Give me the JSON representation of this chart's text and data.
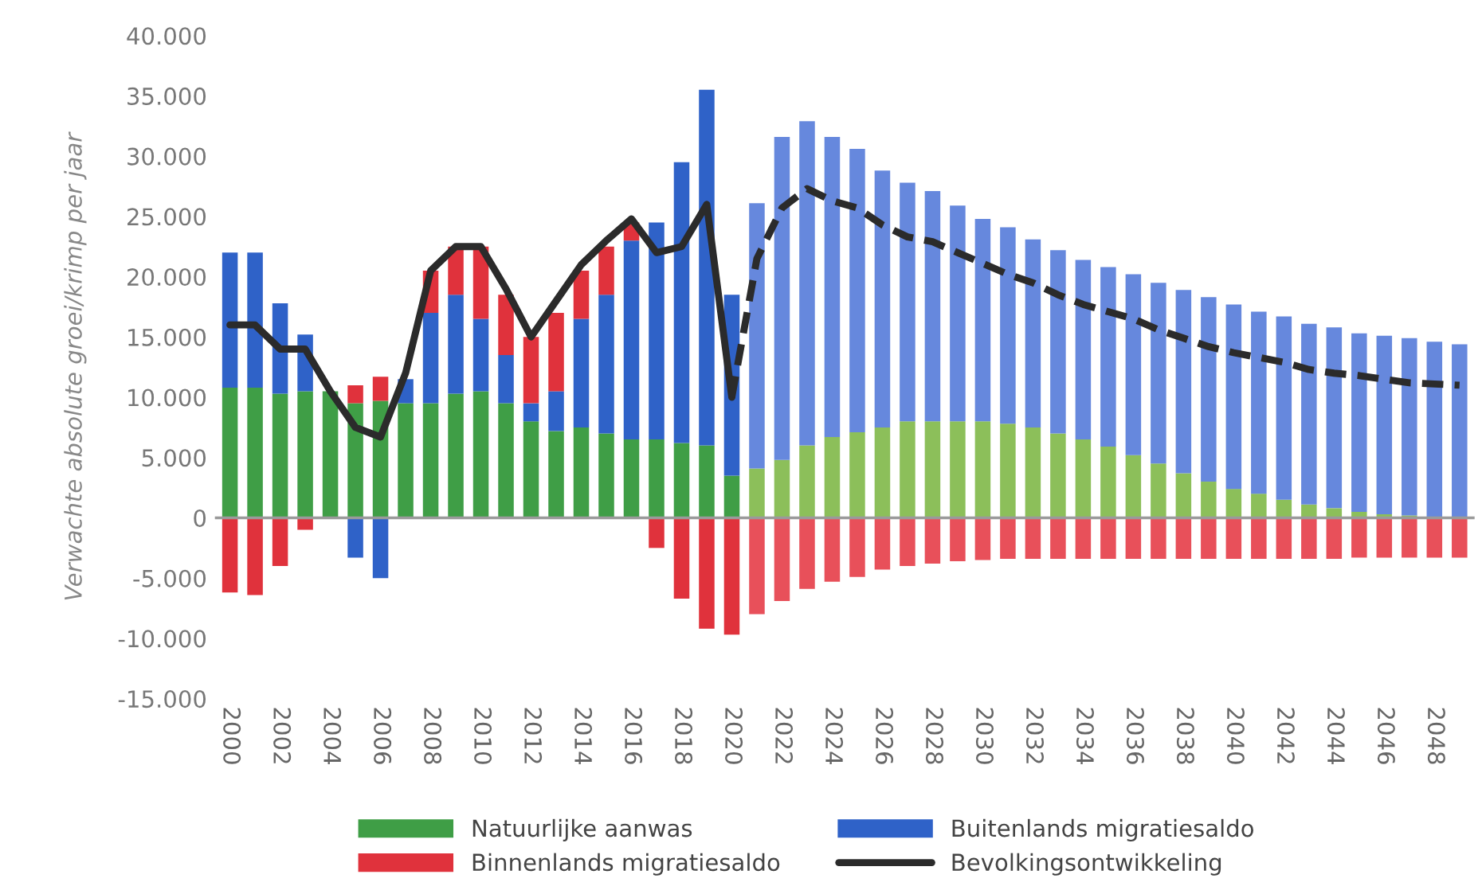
{
  "chart_data": {
    "type": "bar",
    "stacked": true,
    "ylabel": "Verwachte absolute groei/krimp per jaar",
    "x": [
      2000,
      2001,
      2002,
      2003,
      2004,
      2005,
      2006,
      2007,
      2008,
      2009,
      2010,
      2011,
      2012,
      2013,
      2014,
      2015,
      2016,
      2017,
      2018,
      2019,
      2020,
      2021,
      2022,
      2023,
      2024,
      2025,
      2026,
      2027,
      2028,
      2029,
      2030,
      2031,
      2032,
      2033,
      2034,
      2035,
      2036,
      2037,
      2038,
      2039,
      2040,
      2041,
      2042,
      2043,
      2044,
      2045,
      2046,
      2047,
      2048,
      2049
    ],
    "xlim": [
      1999.4,
      2049.6
    ],
    "xticks": [
      2000,
      2002,
      2004,
      2006,
      2008,
      2010,
      2012,
      2014,
      2016,
      2018,
      2020,
      2022,
      2024,
      2026,
      2028,
      2030,
      2032,
      2034,
      2036,
      2038,
      2040,
      2042,
      2044,
      2046,
      2048
    ],
    "ylim": [
      -15000,
      40000
    ],
    "yticks": [
      {
        "value": -15000,
        "label": "-15.000"
      },
      {
        "value": -10000,
        "label": "-10.000"
      },
      {
        "value": -5000,
        "label": "-5.000"
      },
      0,
      {
        "value": 5000,
        "label": "5.000"
      },
      {
        "value": 10000,
        "label": "10.000"
      },
      {
        "value": 15000,
        "label": "15.000"
      },
      {
        "value": 20000,
        "label": "20.000"
      },
      {
        "value": 25000,
        "label": "25.000"
      },
      {
        "value": 30000,
        "label": "30.000"
      },
      {
        "value": 35000,
        "label": "35.000"
      },
      {
        "value": 40000,
        "label": "40.000"
      }
    ],
    "grid": false,
    "legend": "bottom",
    "ref_lines": [
      {
        "axis": "y",
        "value": 0,
        "color": "#9a9a9a"
      }
    ],
    "series": [
      {
        "name": "Natuurlijke aanwas",
        "color": "#3f9e46",
        "colors": [
          "#3f9e46",
          "#3f9e46",
          "#3f9e46",
          "#3f9e46",
          "#3f9e46",
          "#3f9e46",
          "#3f9e46",
          "#3f9e46",
          "#3f9e46",
          "#3f9e46",
          "#3f9e46",
          "#3f9e46",
          "#3f9e46",
          "#3f9e46",
          "#3f9e46",
          "#3f9e46",
          "#3f9e46",
          "#3f9e46",
          "#3f9e46",
          "#3f9e46",
          "#3f9e46",
          "#8cbf5a",
          "#8cbf5a",
          "#8cbf5a",
          "#8cbf5a",
          "#8cbf5a",
          "#8cbf5a",
          "#8cbf5a",
          "#8cbf5a",
          "#8cbf5a",
          "#8cbf5a",
          "#8cbf5a",
          "#8cbf5a",
          "#8cbf5a",
          "#8cbf5a",
          "#8cbf5a",
          "#8cbf5a",
          "#8cbf5a",
          "#8cbf5a",
          "#8cbf5a",
          "#8cbf5a",
          "#8cbf5a",
          "#8cbf5a",
          "#8cbf5a",
          "#8cbf5a",
          "#8cbf5a",
          "#8cbf5a",
          "#8cbf5a",
          "#8cbf5a",
          "#8cbf5a"
        ],
        "values": [
          10800,
          10800,
          10300,
          10500,
          10500,
          9500,
          9700,
          9500,
          9500,
          10300,
          10500,
          9500,
          8000,
          7200,
          7500,
          7000,
          6500,
          6500,
          6200,
          6000,
          3500,
          4100,
          4800,
          6000,
          6700,
          7100,
          7500,
          8000,
          8000,
          8000,
          8000,
          7800,
          7500,
          7000,
          6500,
          5900,
          5200,
          4500,
          3700,
          3000,
          2400,
          2000,
          1500,
          1100,
          800,
          500,
          300,
          200,
          100,
          0
        ]
      },
      {
        "name": "Buitenlands migratiesaldo",
        "color": "#2f62c8",
        "colors": [
          "#2f62c8",
          "#2f62c8",
          "#2f62c8",
          "#2f62c8",
          "#2f62c8",
          "#2f62c8",
          "#2f62c8",
          "#2f62c8",
          "#2f62c8",
          "#2f62c8",
          "#2f62c8",
          "#2f62c8",
          "#2f62c8",
          "#2f62c8",
          "#2f62c8",
          "#2f62c8",
          "#2f62c8",
          "#2f62c8",
          "#2f62c8",
          "#2f62c8",
          "#2f62c8",
          "#6688dd",
          "#6688dd",
          "#6688dd",
          "#6688dd",
          "#6688dd",
          "#6688dd",
          "#6688dd",
          "#6688dd",
          "#6688dd",
          "#6688dd",
          "#6688dd",
          "#6688dd",
          "#6688dd",
          "#6688dd",
          "#6688dd",
          "#6688dd",
          "#6688dd",
          "#6688dd",
          "#6688dd",
          "#6688dd",
          "#6688dd",
          "#6688dd",
          "#6688dd",
          "#6688dd",
          "#6688dd",
          "#6688dd",
          "#6688dd",
          "#6688dd",
          "#6688dd"
        ],
        "values": [
          11200,
          11200,
          7500,
          4700,
          0,
          -3300,
          -5000,
          2000,
          7500,
          8200,
          6000,
          4000,
          1500,
          3300,
          9000,
          11500,
          16500,
          18000,
          23300,
          29500,
          15000,
          22000,
          26800,
          26900,
          24900,
          23500,
          21300,
          19800,
          19100,
          17900,
          16800,
          16300,
          15600,
          15200,
          14900,
          14900,
          15000,
          15000,
          15200,
          15300,
          15300,
          15100,
          15200,
          15000,
          15000,
          14800,
          14800,
          14700,
          14500,
          14400
        ]
      },
      {
        "name": "Binnenlands migratiesaldo",
        "color": "#e0323c",
        "colors": [
          "#e0323c",
          "#e0323c",
          "#e0323c",
          "#e0323c",
          "#e0323c",
          "#e0323c",
          "#e0323c",
          "#e0323c",
          "#e0323c",
          "#e0323c",
          "#e0323c",
          "#e0323c",
          "#e0323c",
          "#e0323c",
          "#e0323c",
          "#e0323c",
          "#e0323c",
          "#e0323c",
          "#e0323c",
          "#e0323c",
          "#e0323c",
          "#e8505a",
          "#e8505a",
          "#e8505a",
          "#e8505a",
          "#e8505a",
          "#e8505a",
          "#e8505a",
          "#e8505a",
          "#e8505a",
          "#e8505a",
          "#e8505a",
          "#e8505a",
          "#e8505a",
          "#e8505a",
          "#e8505a",
          "#e8505a",
          "#e8505a",
          "#e8505a",
          "#e8505a",
          "#e8505a",
          "#e8505a",
          "#e8505a",
          "#e8505a",
          "#e8505a",
          "#e8505a",
          "#e8505a",
          "#e8505a",
          "#e8505a",
          "#e8505a"
        ],
        "values": [
          -6200,
          -6400,
          -4000,
          -1000,
          0,
          1500,
          2000,
          null,
          3500,
          4000,
          6000,
          5000,
          5500,
          6500,
          4000,
          4000,
          1500,
          -2500,
          -6700,
          -9200,
          -9700,
          -8000,
          -6900,
          -5900,
          -5300,
          -4900,
          -4300,
          -4000,
          -3800,
          -3600,
          -3500,
          -3400,
          -3400,
          -3400,
          -3400,
          -3400,
          -3400,
          -3400,
          -3400,
          -3400,
          -3400,
          -3400,
          -3400,
          -3400,
          -3400,
          -3300,
          -3300,
          -3300,
          -3300,
          -3300
        ]
      },
      {
        "name": "Bevolkingsontwikkeling",
        "type": "line",
        "color": "#2b2b2b",
        "line_style": "solid",
        "x": [
          2000,
          2001,
          2002,
          2003,
          2004,
          2005,
          2006,
          2007,
          2008,
          2009,
          2010,
          2011,
          2012,
          2013,
          2014,
          2015,
          2016,
          2017,
          2018,
          2019,
          2020
        ],
        "values": [
          16000,
          16000,
          14000,
          14000,
          10500,
          7500,
          6700,
          12000,
          20500,
          22500,
          22500,
          19000,
          15000,
          18000,
          21000,
          23000,
          24800,
          22000,
          22500,
          26000,
          10000
        ]
      },
      {
        "type": "line",
        "color": "#2b2b2b",
        "line_style": "dashed",
        "x": [
          2020,
          2021,
          2022,
          2023,
          2024,
          2025,
          2026,
          2027,
          2028,
          2029,
          2030,
          2031,
          2032,
          2033,
          2034,
          2035,
          2036,
          2037,
          2038,
          2039,
          2040,
          2041,
          2042,
          2043,
          2044,
          2045,
          2046,
          2047,
          2048,
          2049
        ],
        "values": [
          10000,
          21500,
          25700,
          27300,
          26300,
          25700,
          24300,
          23300,
          22900,
          22000,
          21100,
          20200,
          19500,
          18500,
          17700,
          17100,
          16500,
          15600,
          14900,
          14200,
          13700,
          13300,
          12900,
          12300,
          12000,
          11800,
          11500,
          11200,
          11100,
          11000
        ]
      }
    ]
  }
}
